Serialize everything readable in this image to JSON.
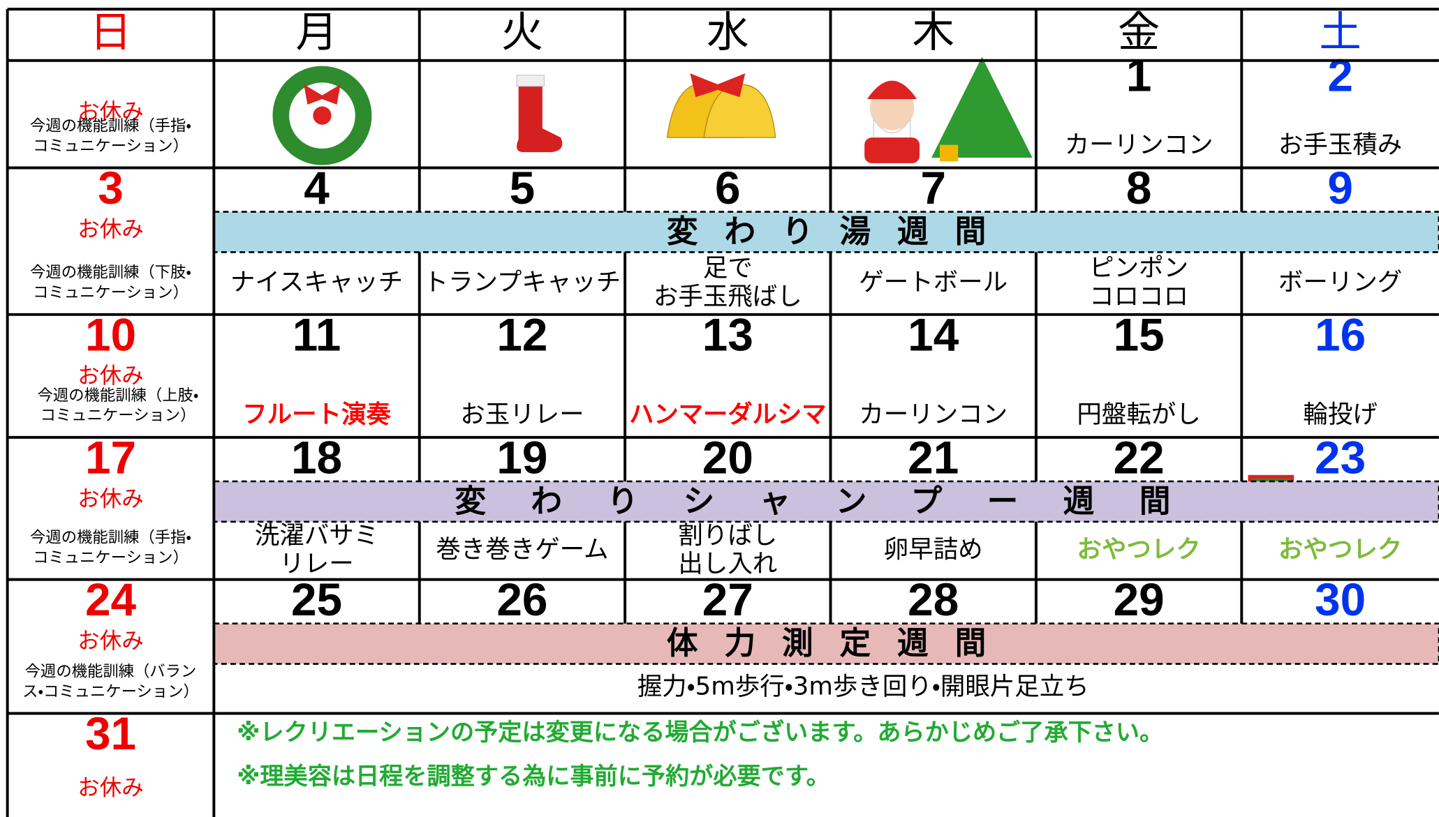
{
  "header": {
    "days": [
      "日",
      "月",
      "火",
      "水",
      "木",
      "金",
      "土"
    ]
  },
  "weeks": [
    {
      "sunday": {
        "label": "お休み",
        "training": [
          "今週の機能訓練（手指・",
          "コミュニケーション）"
        ]
      },
      "days": [
        {
          "date": "1",
          "activity": [
            "カーリンコン"
          ]
        },
        {
          "date": "2",
          "activity": [
            "お手玉積み"
          ]
        }
      ]
    },
    {
      "sunday": {
        "date": "3",
        "label": "お休み",
        "training": [
          "今週の機能訓練（下肢・",
          "コミュニケーション）"
        ]
      },
      "banner": {
        "text": "変わり湯週間",
        "color": "#add8e6"
      },
      "days": [
        {
          "date": "4",
          "activity": [
            "ナイスキャッチ"
          ]
        },
        {
          "date": "5",
          "activity": [
            "トランプキャッチ"
          ]
        },
        {
          "date": "6",
          "activity": [
            "足で",
            "お手玉飛ばし"
          ]
        },
        {
          "date": "7",
          "activity": [
            "ゲートボール"
          ]
        },
        {
          "date": "8",
          "activity": [
            "ピンポン",
            "コロコロ"
          ]
        },
        {
          "date": "9",
          "activity": [
            "ボーリング"
          ]
        }
      ]
    },
    {
      "sunday": {
        "date": "10",
        "label": "お休み",
        "training": [
          "今週の機能訓練（上肢・",
          "コミュニケーション）"
        ]
      },
      "days": [
        {
          "date": "11",
          "activity": [
            "フルート演奏"
          ],
          "color": "#ff0000"
        },
        {
          "date": "12",
          "activity": [
            "お玉リレー"
          ]
        },
        {
          "date": "13",
          "activity": [
            "ハンマーダルシマ"
          ],
          "color": "#ff0000"
        },
        {
          "date": "14",
          "activity": [
            "カーリンコン"
          ]
        },
        {
          "date": "15",
          "activity": [
            "円盤転がし"
          ]
        },
        {
          "date": "16",
          "activity": [
            "輪投げ"
          ]
        }
      ]
    },
    {
      "sunday": {
        "date": "17",
        "label": "お休み",
        "training": [
          "今週の機能訓練（手指・",
          "コミュニケーション）"
        ]
      },
      "banner": {
        "text": "変わりシャンプー週間",
        "color": "#cbc0dd"
      },
      "days": [
        {
          "date": "18",
          "activity": [
            "洗濯バサミ",
            "リレー"
          ]
        },
        {
          "date": "19",
          "activity": [
            "巻き巻きゲーム"
          ]
        },
        {
          "date": "20",
          "activity": [
            "割りばし",
            "出し入れ"
          ]
        },
        {
          "date": "21",
          "activity": [
            "卵早詰め"
          ]
        },
        {
          "date": "22",
          "activity": [
            "おやつレク"
          ],
          "color": "#7dbb3c"
        },
        {
          "date": "23",
          "activity": [
            "おやつレク"
          ],
          "color": "#7dbb3c"
        }
      ]
    },
    {
      "sunday": {
        "date": "24",
        "label": "お休み",
        "training": [
          "今週の機能訓練（バラン",
          "ス・コミュニケーション）"
        ]
      },
      "banner": {
        "text": "体力測定週間",
        "color": "#e6b9b8"
      },
      "days": [
        {
          "date": "25"
        },
        {
          "date": "26"
        },
        {
          "date": "27"
        },
        {
          "date": "28"
        },
        {
          "date": "29"
        },
        {
          "date": "30"
        }
      ],
      "common_activity": "握力・5m歩行・3m歩き回り・開眼片足立ち"
    },
    {
      "sunday": {
        "date": "31",
        "label": "お休み"
      },
      "notes": [
        "※レクリエーションの予定は変更になる場合がございます。あらかじめご了承下さい。",
        "※理美容は日程を調整する為に事前に予約が必要です。"
      ]
    }
  ]
}
